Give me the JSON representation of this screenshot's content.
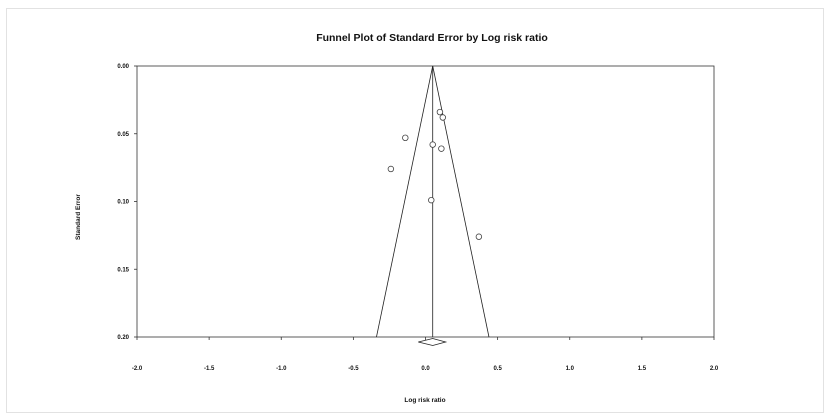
{
  "chart_data": {
    "type": "scatter",
    "title": "Funnel Plot of Standard Error by Log risk ratio",
    "xlabel": "Log risk ratio",
    "ylabel": "Standard Error",
    "xlim": [
      -2.0,
      2.0
    ],
    "ylim": [
      0.0,
      0.2
    ],
    "y_inverted": true,
    "x_ticks": [
      "-2.0",
      "-1.5",
      "-1.0",
      "-0.5",
      "0.0",
      "0.5",
      "1.0",
      "1.5",
      "2.0"
    ],
    "y_ticks": [
      "0.00",
      "0.05",
      "0.10",
      "0.15",
      "0.20"
    ],
    "grid": false,
    "funnel": {
      "center": 0.05,
      "apex_se": 0.0,
      "base_se": 0.2,
      "left_base": -0.34,
      "right_base": 0.44
    },
    "summary_diamond": {
      "center": 0.05,
      "lower": -0.05,
      "upper": 0.14,
      "se": 0.2
    },
    "points": [
      {
        "x": 0.1,
        "y": 0.034
      },
      {
        "x": 0.12,
        "y": 0.038
      },
      {
        "x": -0.14,
        "y": 0.053
      },
      {
        "x": 0.05,
        "y": 0.058
      },
      {
        "x": 0.11,
        "y": 0.061
      },
      {
        "x": -0.24,
        "y": 0.076
      },
      {
        "x": 0.04,
        "y": 0.099
      },
      {
        "x": 0.37,
        "y": 0.126
      }
    ]
  }
}
